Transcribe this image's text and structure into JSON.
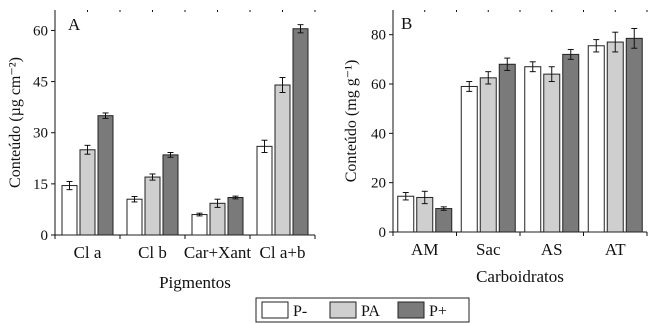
{
  "legend": {
    "items": [
      {
        "label": "P-",
        "color": "#ffffff"
      },
      {
        "label": "PA",
        "color": "#cfcfcf"
      },
      {
        "label": "P+",
        "color": "#7a7a7a"
      }
    ]
  },
  "chart_data": [
    {
      "type": "bar",
      "panel_label": "A",
      "xlabel": "Pigmentos",
      "ylabel": "Conteúdo (µg cm⁻²)",
      "ylim": [
        0,
        66
      ],
      "yticks": [
        0,
        15,
        30,
        45,
        60
      ],
      "categories": [
        "Cl a",
        "Cl b",
        "Car+Xant",
        "Cl a+b"
      ],
      "series": [
        {
          "name": "P-",
          "values": [
            14.5,
            10.5,
            6,
            26
          ],
          "errors": [
            1.2,
            0.8,
            0.4,
            1.8
          ]
        },
        {
          "name": "PA",
          "values": [
            25,
            17,
            9.3,
            44
          ],
          "errors": [
            1.3,
            0.9,
            1.2,
            2.2
          ]
        },
        {
          "name": "P+",
          "values": [
            35,
            23.5,
            11,
            60.5
          ],
          "errors": [
            0.8,
            0.7,
            0.4,
            1.2
          ]
        }
      ]
    },
    {
      "type": "bar",
      "panel_label": "B",
      "xlabel": "Carboidratos",
      "ylabel": "Conteúdo (mg g⁻¹)",
      "ylim": [
        0,
        90
      ],
      "yticks": [
        0,
        20,
        40,
        60,
        80
      ],
      "categories": [
        "AM",
        "Sac",
        "AS",
        "AT"
      ],
      "series": [
        {
          "name": "P-",
          "values": [
            14.5,
            59,
            67,
            75.5
          ],
          "errors": [
            1.5,
            2,
            2,
            2.5
          ]
        },
        {
          "name": "PA",
          "values": [
            14,
            62.5,
            64,
            77
          ],
          "errors": [
            2.5,
            2.5,
            3,
            4
          ]
        },
        {
          "name": "P+",
          "values": [
            9.5,
            68,
            72,
            78.5
          ],
          "errors": [
            0.7,
            2.5,
            2,
            4
          ]
        }
      ]
    }
  ]
}
